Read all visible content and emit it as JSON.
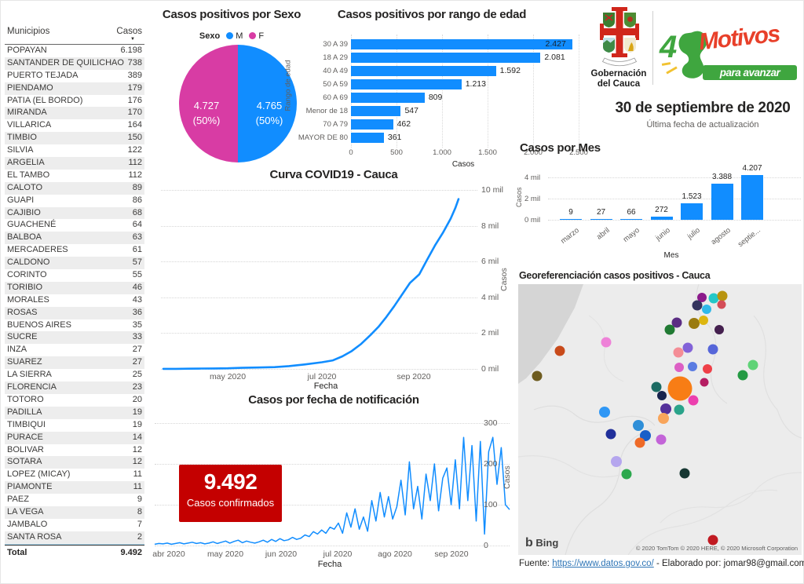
{
  "table": {
    "headers": [
      "Municipios",
      "Casos"
    ],
    "rows": [
      [
        "POPAYAN",
        "6.198"
      ],
      [
        "SANTANDER DE QUILICHAO",
        "738"
      ],
      [
        "PUERTO TEJADA",
        "389"
      ],
      [
        "PIENDAMO",
        "179"
      ],
      [
        "PATIA (EL BORDO)",
        "176"
      ],
      [
        "MIRANDA",
        "170"
      ],
      [
        "VILLARICA",
        "164"
      ],
      [
        "TIMBIO",
        "150"
      ],
      [
        "SILVIA",
        "122"
      ],
      [
        "ARGELIA",
        "112"
      ],
      [
        "EL TAMBO",
        "112"
      ],
      [
        "CALOTO",
        "89"
      ],
      [
        "GUAPI",
        "86"
      ],
      [
        "CAJIBIO",
        "68"
      ],
      [
        "GUACHENÉ",
        "64"
      ],
      [
        "BALBOA",
        "63"
      ],
      [
        "MERCADERES",
        "61"
      ],
      [
        "CALDONO",
        "57"
      ],
      [
        "CORINTO",
        "55"
      ],
      [
        "TORIBIO",
        "46"
      ],
      [
        "MORALES",
        "43"
      ],
      [
        "ROSAS",
        "36"
      ],
      [
        "BUENOS AIRES",
        "35"
      ],
      [
        "SUCRE",
        "33"
      ],
      [
        "INZA",
        "27"
      ],
      [
        "SUAREZ",
        "27"
      ],
      [
        "LA SIERRA",
        "25"
      ],
      [
        "FLORENCIA",
        "23"
      ],
      [
        "TOTORO",
        "20"
      ],
      [
        "PADILLA",
        "19"
      ],
      [
        "TIMBIQUI",
        "19"
      ],
      [
        "PURACE",
        "14"
      ],
      [
        "BOLIVAR",
        "12"
      ],
      [
        "SOTARA",
        "12"
      ],
      [
        "LOPEZ (MICAY)",
        "11"
      ],
      [
        "PIAMONTE",
        "11"
      ],
      [
        "PAEZ",
        "9"
      ],
      [
        "LA VEGA",
        "8"
      ],
      [
        "JAMBALO",
        "7"
      ],
      [
        "SANTA ROSA",
        "2"
      ]
    ],
    "total_label": "Total",
    "total_value": "9.492"
  },
  "header": {
    "org_line1": "Gobernación",
    "org_line2": "del Cauca",
    "motivos_4": "4",
    "motivos_word": "Motivos",
    "motivos_tag": "para avanzar",
    "date": "30 de septiembre de 2020",
    "date_caption": "Última fecha de actualización"
  },
  "big_number": {
    "value": "9.492",
    "label": "Casos confirmados"
  },
  "footer": {
    "prefix": "Fuente: ",
    "link": "https://www.datos.gov.co/",
    "suffix": " - Elaborado por: jomar98@gmail.com"
  },
  "chart_data": [
    {
      "type": "pie",
      "title": "Casos positivos por Sexo",
      "legend_title": "Sexo",
      "series": [
        {
          "name": "M",
          "value": 4765,
          "label": "4.765",
          "pct": "(50%)",
          "color": "#118DFF"
        },
        {
          "name": "F",
          "value": 4727,
          "label": "4.727",
          "pct": "(50%)",
          "color": "#d83ca4"
        }
      ]
    },
    {
      "type": "bar",
      "orientation": "horizontal",
      "title": "Casos positivos por rango de edad",
      "categories": [
        "30 A 39",
        "18 A 29",
        "40 A 49",
        "50 A 59",
        "60 A 69",
        "Menor de 18",
        "70 A 79",
        "MAYOR DE 80"
      ],
      "values": [
        2427,
        2081,
        1592,
        1213,
        809,
        547,
        462,
        361
      ],
      "value_labels": [
        "2.427",
        "2.081",
        "1.592",
        "1.213",
        "809",
        "547",
        "462",
        "361"
      ],
      "xticks": [
        "0",
        "500",
        "1.000",
        "1.500",
        "2.000",
        "2.500"
      ],
      "xlim": [
        0,
        2500
      ],
      "xlabel": "Casos",
      "ylabel": "Rango de edad",
      "bar_color": "#118DFF"
    },
    {
      "type": "line",
      "title": "Curva COVID19 - Cauca",
      "xlabel": "Fecha",
      "ylabel": "Casos",
      "yticks": [
        "0 mil",
        "2 mil",
        "4 mil",
        "6 mil",
        "8 mil",
        "10 mil"
      ],
      "xticks": [
        "may 2020",
        "jul 2020",
        "sep 2020"
      ],
      "ylim": [
        0,
        10000
      ],
      "line_color": "#118DFF",
      "points": [
        [
          0,
          3
        ],
        [
          8,
          6
        ],
        [
          16,
          12
        ],
        [
          24,
          20
        ],
        [
          32,
          28
        ],
        [
          41,
          36
        ],
        [
          50,
          60
        ],
        [
          60,
          80
        ],
        [
          71,
          102
        ],
        [
          80,
          160
        ],
        [
          90,
          250
        ],
        [
          101,
          374
        ],
        [
          108,
          480
        ],
        [
          114,
          700
        ],
        [
          120,
          1000
        ],
        [
          126,
          1400
        ],
        [
          132,
          1897
        ],
        [
          137,
          2350
        ],
        [
          142,
          2900
        ],
        [
          147,
          3500
        ],
        [
          152,
          4150
        ],
        [
          157,
          4800
        ],
        [
          163,
          5285
        ],
        [
          168,
          6100
        ],
        [
          173,
          6900
        ],
        [
          178,
          7600
        ],
        [
          183,
          8400
        ],
        [
          185,
          8800
        ],
        [
          186,
          9000
        ],
        [
          188,
          9492
        ]
      ]
    },
    {
      "type": "bar",
      "title": "Casos por Mes",
      "categories": [
        "marzo",
        "abril",
        "mayo",
        "junio",
        "julio",
        "agosto",
        "septie..."
      ],
      "values": [
        9,
        27,
        66,
        272,
        1523,
        3388,
        4207
      ],
      "value_labels": [
        "9",
        "27",
        "66",
        "272",
        "1.523",
        "3.388",
        "4.207"
      ],
      "yticks": [
        "0 mil",
        "2 mil",
        "4 mil"
      ],
      "ylim": [
        0,
        4200
      ],
      "xlabel": "Mes",
      "ylabel": "Casos",
      "bar_color": "#118DFF"
    },
    {
      "type": "line",
      "title": "Casos por fecha de notificación",
      "xlabel": "Fecha",
      "ylabel": "Casos",
      "yticks": [
        "0",
        "100",
        "200",
        "300"
      ],
      "xticks": [
        "abr 2020",
        "may 2020",
        "jun 2020",
        "jul 2020",
        "ago 2020",
        "sep 2020"
      ],
      "ylim": [
        0,
        300
      ],
      "line_color": "#118DFF",
      "values": [
        3,
        5,
        4,
        6,
        3,
        5,
        7,
        4,
        6,
        8,
        5,
        7,
        4,
        6,
        9,
        5,
        8,
        11,
        6,
        10,
        13,
        7,
        11,
        8,
        6,
        9,
        13,
        8,
        15,
        10,
        17,
        12,
        14,
        20,
        15,
        18,
        26,
        22,
        34,
        28,
        38,
        30,
        45,
        40,
        55,
        30,
        80,
        45,
        90,
        40,
        70,
        35,
        110,
        60,
        130,
        70,
        120,
        65,
        95,
        160,
        75,
        205,
        90,
        145,
        65,
        175,
        110,
        200,
        85,
        165,
        190,
        100,
        210,
        90,
        265,
        110,
        245,
        60,
        255,
        28,
        230,
        265,
        150,
        240,
        100,
        88
      ]
    },
    {
      "type": "scatter_map",
      "title": "Georeferenciación casos positivos - Cauca",
      "attribution": "© 2020 TomTom © 2020 HERE, © 2020 Microsoft Corporation",
      "provider": "Bing",
      "points": [
        {
          "x": 64.8,
          "y": 4.9,
          "r": 6,
          "color": "#8B1A8B"
        },
        {
          "x": 69.0,
          "y": 5.2,
          "r": 6.5,
          "color": "#24C8C8"
        },
        {
          "x": 63.2,
          "y": 7.8,
          "r": 6.5,
          "color": "#34345e"
        },
        {
          "x": 72.0,
          "y": 4.3,
          "r": 6.5,
          "color": "#b8940f"
        },
        {
          "x": 71.7,
          "y": 7.5,
          "r": 5.5,
          "color": "#d44d57"
        },
        {
          "x": 66.5,
          "y": 9.3,
          "r": 6,
          "color": "#30b9e8"
        },
        {
          "x": 56.0,
          "y": 14.2,
          "r": 6.5,
          "color": "#5b2d83"
        },
        {
          "x": 62.0,
          "y": 14.5,
          "r": 7,
          "color": "#9a7b10"
        },
        {
          "x": 65.4,
          "y": 13.3,
          "r": 6,
          "color": "#ddb60f"
        },
        {
          "x": 53.5,
          "y": 16.8,
          "r": 6.5,
          "color": "#217a33"
        },
        {
          "x": 70.9,
          "y": 16.8,
          "r": 6,
          "color": "#45204f"
        },
        {
          "x": 31.0,
          "y": 21.4,
          "r": 6.5,
          "color": "#ee82d8"
        },
        {
          "x": 14.7,
          "y": 24.6,
          "r": 6.5,
          "color": "#c84a1a"
        },
        {
          "x": 56.5,
          "y": 25.2,
          "r": 6.5,
          "color": "#f48d96"
        },
        {
          "x": 59.8,
          "y": 23.5,
          "r": 6.5,
          "color": "#8262d8"
        },
        {
          "x": 68.7,
          "y": 24.1,
          "r": 6.5,
          "color": "#5666d9"
        },
        {
          "x": 6.6,
          "y": 33.9,
          "r": 6.5,
          "color": "#6e5c20"
        },
        {
          "x": 56.8,
          "y": 30.7,
          "r": 6,
          "color": "#dc5fc4"
        },
        {
          "x": 61.5,
          "y": 30.4,
          "r": 6,
          "color": "#5b7ce2"
        },
        {
          "x": 66.8,
          "y": 31.3,
          "r": 6,
          "color": "#ef4048"
        },
        {
          "x": 82.8,
          "y": 29.9,
          "r": 6.5,
          "color": "#5fd377"
        },
        {
          "x": 79.2,
          "y": 33.6,
          "r": 6.5,
          "color": "#259a44"
        },
        {
          "x": 65.7,
          "y": 36.2,
          "r": 5.5,
          "color": "#b51d62"
        },
        {
          "x": 48.8,
          "y": 38.0,
          "r": 6.5,
          "color": "#1c6b63"
        },
        {
          "x": 57.1,
          "y": 38.6,
          "r": 15.5,
          "color": "#f87d15"
        },
        {
          "x": 50.7,
          "y": 41.2,
          "r": 6,
          "color": "#17244d"
        },
        {
          "x": 61.8,
          "y": 42.9,
          "r": 6.5,
          "color": "#ec3fae"
        },
        {
          "x": 52.1,
          "y": 46.1,
          "r": 7,
          "color": "#53309a"
        },
        {
          "x": 56.8,
          "y": 46.4,
          "r": 6.5,
          "color": "#2aa38a"
        },
        {
          "x": 30.5,
          "y": 47.2,
          "r": 7,
          "color": "#2f97f5"
        },
        {
          "x": 51.2,
          "y": 49.6,
          "r": 7,
          "color": "#f8a55b"
        },
        {
          "x": 42.4,
          "y": 52.2,
          "r": 7,
          "color": "#2f8fd8"
        },
        {
          "x": 32.7,
          "y": 55.4,
          "r": 6.5,
          "color": "#202f9a"
        },
        {
          "x": 44.9,
          "y": 55.9,
          "r": 7,
          "color": "#1a5fc8"
        },
        {
          "x": 50.4,
          "y": 57.4,
          "r": 6.5,
          "color": "#c364d8"
        },
        {
          "x": 42.9,
          "y": 58.6,
          "r": 6.5,
          "color": "#ee6a28"
        },
        {
          "x": 34.6,
          "y": 65.5,
          "r": 7,
          "color": "#b5a6ee"
        },
        {
          "x": 38.2,
          "y": 70.1,
          "r": 6.5,
          "color": "#2ca84d"
        },
        {
          "x": 58.7,
          "y": 69.9,
          "r": 6.5,
          "color": "#173833"
        },
        {
          "x": 68.7,
          "y": 94.5,
          "r": 6.5,
          "color": "#c11a22"
        }
      ]
    }
  ]
}
